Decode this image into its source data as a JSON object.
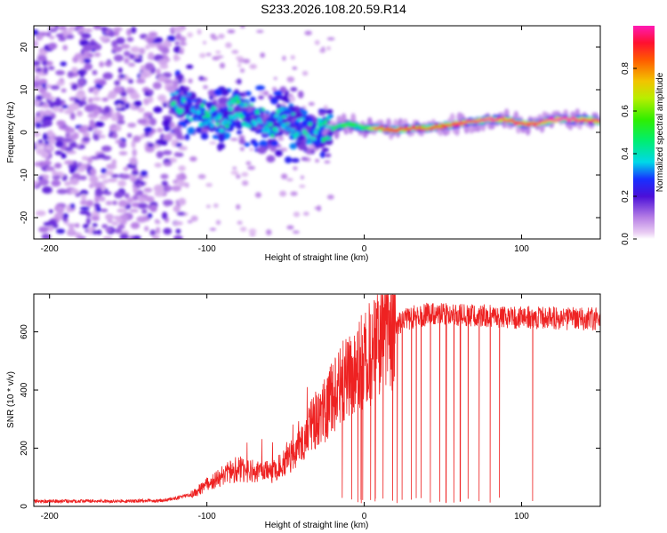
{
  "title": "S233.2026.108.20.59.R14",
  "chart_data": [
    {
      "type": "heatmap",
      "title": "S233.2026.108.20.59.R14",
      "xlabel": "Height of straight line (km)",
      "ylabel": "Frequency (Hz)",
      "xlim": [
        -210,
        150
      ],
      "ylim": [
        -25,
        25
      ],
      "xticks": [
        -200,
        -100,
        0,
        100
      ],
      "yticks": [
        -20,
        -10,
        0,
        10,
        20
      ],
      "colorbar": {
        "label": "Normalized spectral amplitude",
        "range": [
          0,
          1
        ],
        "ticks": [
          0.0,
          0.2,
          0.4,
          0.6,
          0.8
        ]
      },
      "ridge": {
        "x": [
          -120,
          -110,
          -100,
          -90,
          -80,
          -70,
          -60,
          -50,
          -40,
          -30,
          -20,
          -10,
          0,
          10,
          20,
          30,
          40,
          50,
          60,
          70,
          80,
          90,
          100,
          110,
          120,
          130,
          140,
          150
        ],
        "freq": [
          7,
          6,
          4,
          3,
          6,
          3,
          2,
          3,
          1,
          0,
          1,
          2,
          1,
          1,
          0.5,
          1,
          1,
          1.5,
          2,
          2.5,
          3,
          3,
          2,
          2,
          3,
          3,
          3,
          2.5
        ],
        "amplitude": [
          0.3,
          0.3,
          0.35,
          0.3,
          0.4,
          0.3,
          0.3,
          0.3,
          0.3,
          0.35,
          0.4,
          0.45,
          0.5,
          0.9,
          0.9,
          0.9,
          0.85,
          0.9,
          0.95,
          0.95,
          1.0,
          0.95,
          0.95,
          0.95,
          1.0,
          1.0,
          0.95,
          0.95
        ]
      }
    },
    {
      "type": "line",
      "xlabel": "Height of straight line (km)",
      "ylabel": "SNR (10 * v/v)",
      "xlim": [
        -210,
        150
      ],
      "ylim": [
        0,
        730
      ],
      "xticks": [
        -200,
        -100,
        0,
        100
      ],
      "yticks": [
        0,
        200,
        400,
        600
      ],
      "series": [
        {
          "name": "SNR",
          "color": "#ee2222",
          "x": [
            -210,
            -180,
            -150,
            -130,
            -120,
            -110,
            -100,
            -90,
            -80,
            -70,
            -60,
            -50,
            -40,
            -35,
            -30,
            -25,
            -20,
            -15,
            -10,
            -5,
            0,
            5,
            10,
            15,
            20,
            25,
            30,
            40,
            50,
            60,
            70,
            80,
            90,
            100,
            110,
            120,
            130,
            140,
            150
          ],
          "values": [
            18,
            18,
            18,
            20,
            28,
            40,
            75,
            105,
            130,
            120,
            115,
            150,
            210,
            260,
            300,
            330,
            380,
            420,
            440,
            470,
            500,
            530,
            570,
            600,
            620,
            640,
            650,
            660,
            660,
            660,
            655,
            655,
            650,
            650,
            648,
            648,
            645,
            645,
            645
          ]
        }
      ],
      "dropouts_x": [
        -14,
        -8,
        -4,
        -2,
        -1,
        4,
        7,
        12,
        18,
        21,
        24,
        30,
        33,
        36,
        42,
        48,
        52,
        57,
        61,
        66,
        73,
        80,
        86,
        107
      ]
    }
  ]
}
